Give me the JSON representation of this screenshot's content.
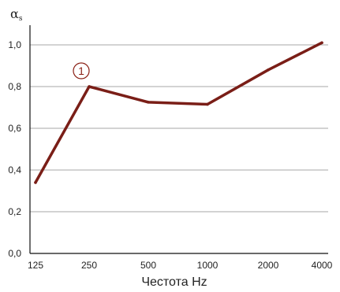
{
  "chart_data": {
    "type": "line",
    "title": "",
    "xlabel": "Честота Hz",
    "ylabel": "αs",
    "categories": [
      "125",
      "250",
      "500",
      "1000",
      "2000",
      "4000"
    ],
    "series": [
      {
        "values": [
          0.34,
          0.8,
          0.725,
          0.715,
          0.88,
          1.01
        ],
        "color": "#7a1e17"
      }
    ],
    "y_ticks": [
      "0,0",
      "0,2",
      "0,4",
      "0,6",
      "0,8",
      "1,0"
    ],
    "ylim": [
      0,
      1.0
    ],
    "grid": true,
    "annotation": {
      "text": "1",
      "category": "250"
    }
  }
}
